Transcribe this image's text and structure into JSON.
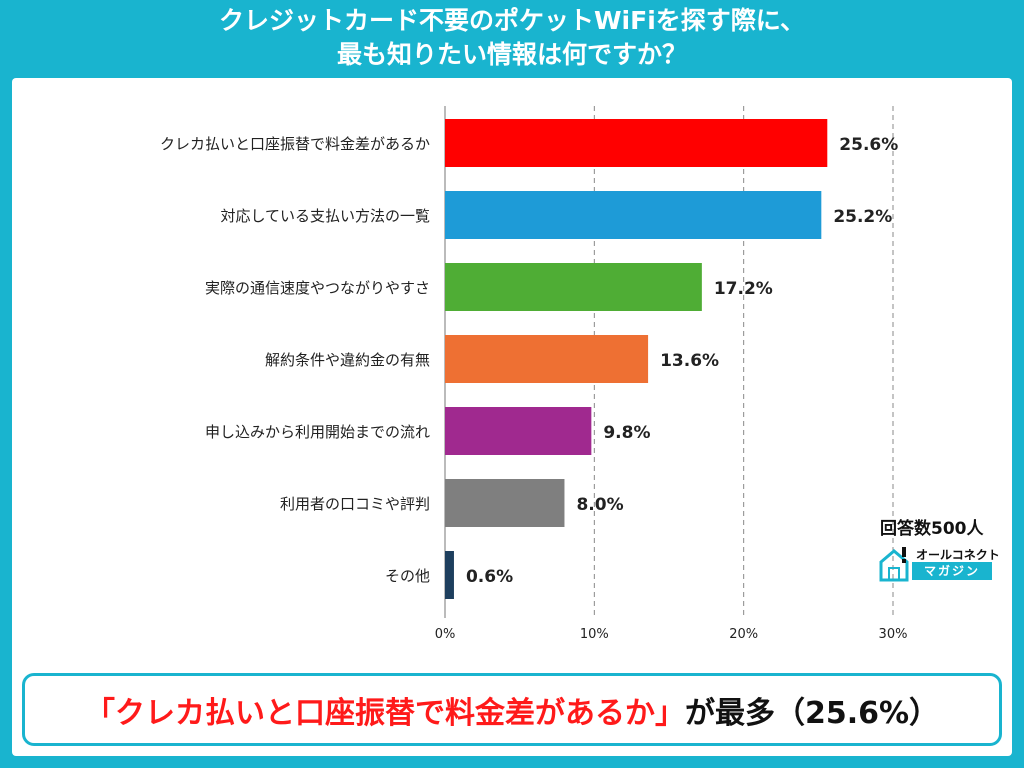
{
  "title": {
    "line1": "クレジットカード不要のポケットWiFiを探す際に、",
    "line2": "最も知りたい情報は何ですか？"
  },
  "chart_data": {
    "type": "bar",
    "orientation": "horizontal",
    "categories": [
      "クレカ払いと口座振替で料金差があるか",
      "対応している支払い方法の一覧",
      "実際の通信速度やつながりやすさ",
      "解約条件や違約金の有無",
      "申し込みから利用開始までの流れ",
      "利用者の口コミや評判",
      "その他"
    ],
    "values": [
      25.6,
      25.2,
      17.2,
      13.6,
      9.8,
      8.0,
      0.6
    ],
    "value_labels": [
      "25.6%",
      "25.2%",
      "17.2%",
      "13.6%",
      "9.8%",
      "8.0%",
      "0.6%"
    ],
    "colors": [
      "#ff0000",
      "#1e9bd7",
      "#4fad35",
      "#ee7033",
      "#a0298f",
      "#7f7f7f",
      "#1e3f5e"
    ],
    "xlim": [
      0,
      30
    ],
    "xticks": [
      0,
      10,
      20,
      30
    ],
    "xtick_labels": [
      "0%",
      "10%",
      "20%",
      "30%"
    ],
    "grid": "vertical-dashed"
  },
  "note": {
    "respondents": "回答数500人"
  },
  "logo": {
    "top_text": "オールコネクト",
    "bottom_text": "マガジン",
    "icon": "house-exclamation-icon",
    "accent": "#19b4cf"
  },
  "banner": {
    "open_bracket": "「",
    "highlight": "クレカ払いと口座振替で料金差があるか",
    "close_bracket": "」",
    "suffix": "が最多（25.6%）"
  }
}
